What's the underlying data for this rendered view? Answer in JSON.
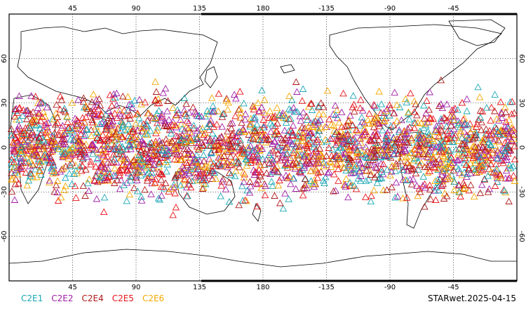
{
  "figure": {
    "footer_stamp": "STARwet.2025-04-15",
    "projection": "equirectangular, centered 120E",
    "lon_range": [
      0,
      360
    ],
    "lat_range": [
      -90,
      90
    ],
    "grid_style": "dotted",
    "marker": "open-triangle"
  },
  "axes": {
    "top_lon_labels": [
      "45",
      "90",
      "135",
      "180",
      "-135",
      "-90",
      "-45"
    ],
    "bottom_lon_labels": [
      "45",
      "90",
      "135",
      "180",
      "-135",
      "-90",
      "-45"
    ],
    "lon_values": [
      45,
      90,
      135,
      180,
      225,
      270,
      315
    ],
    "left_lat_labels": [
      "60",
      "30",
      "0",
      "-30",
      "-60"
    ],
    "right_lat_labels": [
      "60",
      "30",
      "0",
      "-30",
      "-60"
    ],
    "lat_values": [
      60,
      30,
      0,
      -30,
      -60
    ]
  },
  "legend": [
    {
      "label": "C2E1",
      "color": "#1aa7b5"
    },
    {
      "label": "C2E2",
      "color": "#a020a8"
    },
    {
      "label": "C2E4",
      "color": "#b01818"
    },
    {
      "label": "C2E5",
      "color": "#e8141a"
    },
    {
      "label": "C2E6",
      "color": "#f5a800"
    }
  ]
}
